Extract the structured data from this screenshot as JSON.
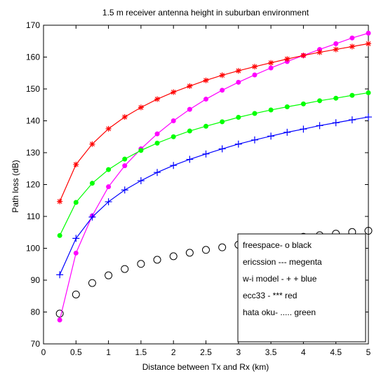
{
  "chart_data": {
    "type": "line",
    "title": "1.5 m receiver antenna height in suburban environment",
    "xlabel": "Distance between Tx and Rx (km)",
    "ylabel": "Path loss (dB)",
    "xlim": [
      0,
      5
    ],
    "ylim": [
      70,
      170
    ],
    "xticks": [
      0,
      0.5,
      1,
      1.5,
      2,
      2.5,
      3,
      3.5,
      4,
      4.5,
      5
    ],
    "xtick_labels": [
      "0",
      "0.5",
      "1",
      "1.5",
      "2",
      "2.5",
      "3",
      "3.5",
      "4",
      "4.5",
      "5"
    ],
    "yticks": [
      70,
      80,
      90,
      100,
      110,
      120,
      130,
      140,
      150,
      160,
      170
    ],
    "ytick_labels": [
      "70",
      "80",
      "90",
      "100",
      "110",
      "120",
      "130",
      "140",
      "150",
      "160",
      "170"
    ],
    "grid": false,
    "legend_position": "bottom-right",
    "legend_entries": [
      "freespace-  o black",
      "ericssion --- megenta",
      "w-i model - + + blue",
      "ecc33 -  *** red",
      "hata oku- ..... green"
    ],
    "x": [
      0.25,
      0.5,
      0.75,
      1,
      1.25,
      1.5,
      1.75,
      2,
      2.25,
      2.5,
      2.75,
      3,
      3.25,
      3.5,
      3.75,
      4,
      4.25,
      4.5,
      4.75,
      5
    ],
    "series": [
      {
        "color": "#000000",
        "marker": "o",
        "line": false,
        "values": [
          79.5,
          85.5,
          89.1,
          91.5,
          93.5,
          95.1,
          96.4,
          97.5,
          98.6,
          99.5,
          100.3,
          101.1,
          101.8,
          102.4,
          103.0,
          103.6,
          104.1,
          104.6,
          105.1,
          105.5
        ]
      },
      {
        "color": "#ff00ff",
        "marker": "dot",
        "line": true,
        "values": [
          77.5,
          98.5,
          110.2,
          119.3,
          125.9,
          131.2,
          135.9,
          140.0,
          143.6,
          146.8,
          149.6,
          152.1,
          154.4,
          156.6,
          158.6,
          160.5,
          162.4,
          164.2,
          166.0,
          167.5
        ]
      },
      {
        "color": "#0000ff",
        "marker": "+",
        "line": true,
        "values": [
          91.7,
          103.1,
          109.8,
          114.6,
          118.3,
          121.2,
          123.8,
          126.0,
          127.9,
          129.6,
          131.2,
          132.7,
          134.0,
          135.2,
          136.4,
          137.4,
          138.5,
          139.4,
          140.3,
          141.2
        ]
      },
      {
        "color": "#ff0000",
        "marker": "*",
        "line": true,
        "values": [
          114.7,
          126.3,
          132.7,
          137.5,
          141.2,
          144.2,
          146.8,
          149.0,
          150.9,
          152.7,
          154.3,
          155.7,
          157.0,
          158.2,
          159.4,
          160.5,
          161.5,
          162.4,
          163.3,
          164.2
        ]
      },
      {
        "color": "#00ff00",
        "marker": "dot",
        "line": true,
        "values": [
          104.0,
          114.4,
          120.4,
          124.7,
          128.0,
          130.7,
          133.0,
          135.0,
          136.8,
          138.3,
          139.7,
          141.1,
          142.3,
          143.4,
          144.4,
          145.3,
          146.3,
          147.1,
          148.0,
          148.8
        ]
      }
    ]
  }
}
